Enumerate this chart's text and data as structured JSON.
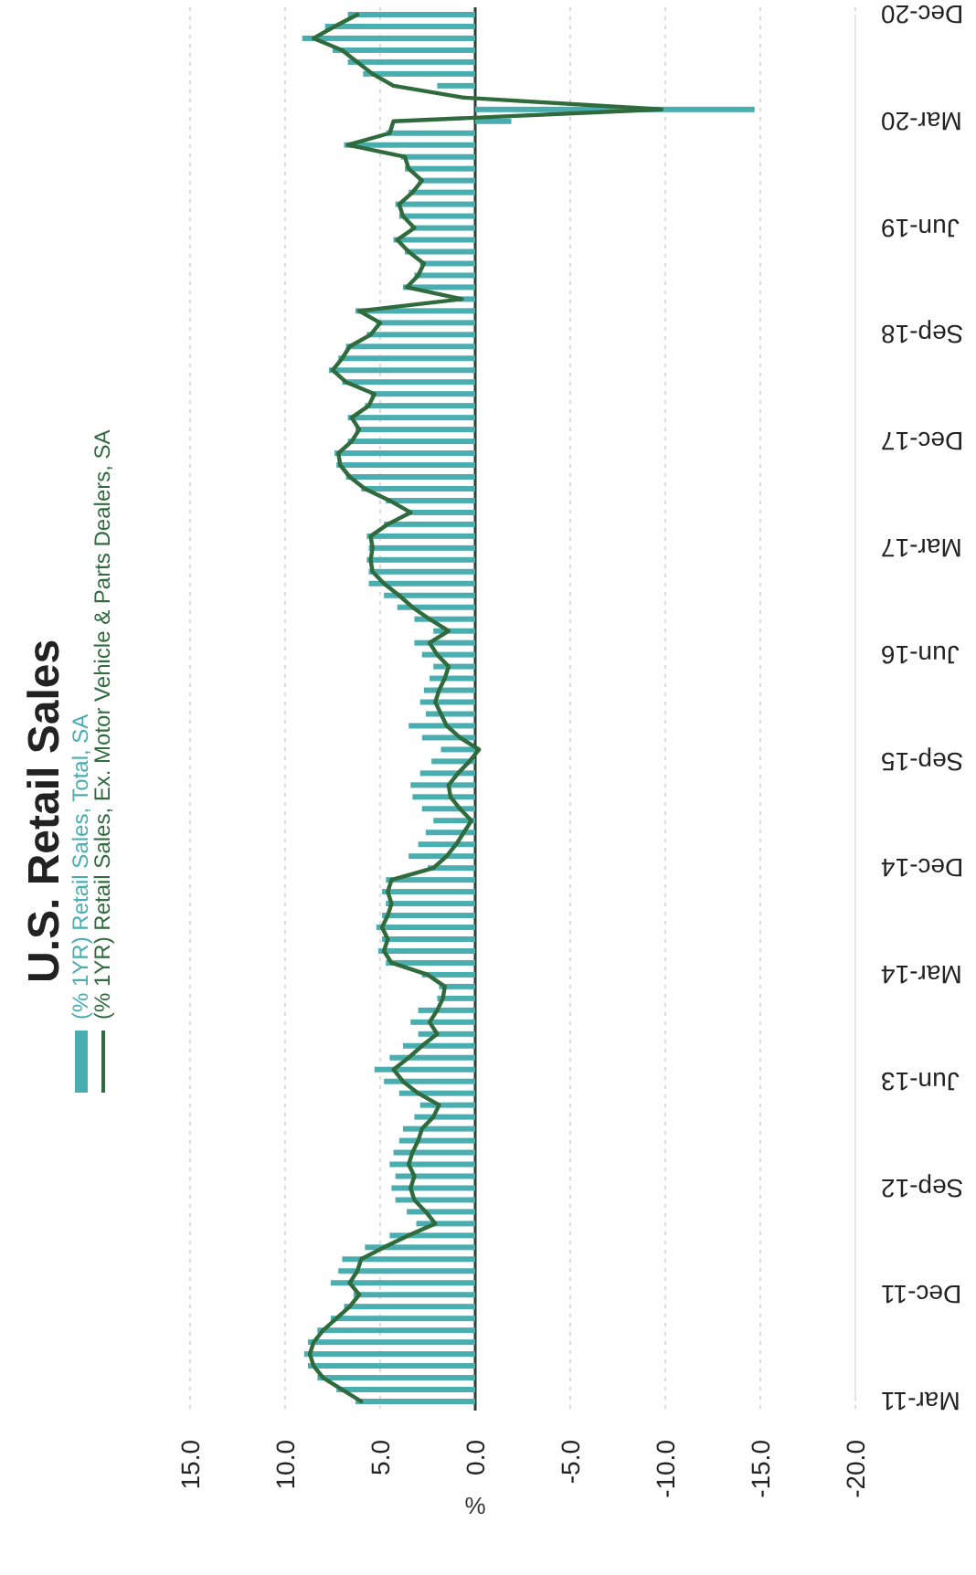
{
  "chart_data": {
    "type": "bar",
    "orientation": "horizontal",
    "title": "U.S. Retail Sales",
    "xlabel": "%",
    "categories": [
      "Dec-20",
      null,
      null,
      null,
      null,
      null,
      null,
      null,
      null,
      "Mar-20",
      null,
      null,
      null,
      null,
      null,
      null,
      null,
      null,
      "Jun-19",
      null,
      null,
      null,
      null,
      null,
      null,
      null,
      null,
      "Sep-18",
      null,
      null,
      null,
      null,
      null,
      null,
      null,
      null,
      "Dec-17",
      null,
      null,
      null,
      null,
      null,
      null,
      null,
      null,
      "Mar-17",
      null,
      null,
      null,
      null,
      null,
      null,
      null,
      null,
      "Jun-16",
      null,
      null,
      null,
      null,
      null,
      null,
      null,
      null,
      "Sep-15",
      null,
      null,
      null,
      null,
      null,
      null,
      null,
      null,
      "Dec-14",
      null,
      null,
      null,
      null,
      null,
      null,
      null,
      null,
      "Mar-14",
      null,
      null,
      null,
      null,
      null,
      null,
      null,
      null,
      "Jun-13",
      null,
      null,
      null,
      null,
      null,
      null,
      null,
      null,
      "Sep-12",
      null,
      null,
      null,
      null,
      null,
      null,
      null,
      null,
      "Dec-11",
      null,
      null,
      null,
      null,
      null,
      null,
      null,
      null,
      "Mar-11"
    ],
    "series": [
      {
        "name": "(% 1YR) Retail Sales, Total, SA",
        "type": "bar",
        "color": "#4aaeb0",
        "values": [
          6.7,
          7.9,
          9.1,
          7.5,
          6.7,
          5.9,
          2.0,
          null,
          -14.7,
          -1.9,
          4.7,
          6.9,
          3.9,
          3.7,
          3.0,
          3.5,
          4.2,
          4.0,
          3.4,
          4.3,
          3.7,
          2.9,
          3.2,
          3.8,
          0.9,
          6.3,
          5.2,
          5.7,
          6.8,
          7.2,
          7.7,
          7.0,
          5.5,
          5.8,
          6.7,
          6.3,
          6.7,
          7.4,
          7.3,
          6.8,
          6.0,
          4.7,
          3.6,
          4.8,
          5.7,
          5.6,
          5.7,
          5.6,
          5.6,
          4.8,
          4.1,
          3.2,
          2.2,
          3.2,
          2.8,
          2.2,
          2.4,
          2.7,
          2.9,
          2.6,
          3.5,
          2.8,
          1.8,
          2.3,
          2.9,
          3.4,
          3.3,
          2.8,
          2.2,
          2.6,
          3.0,
          3.5,
          2.5,
          4.7,
          4.9,
          4.7,
          4.9,
          5.2,
          4.9,
          5.1,
          4.7,
          2.8,
          1.9,
          2.0,
          3.0,
          3.4,
          3.0,
          3.8,
          4.5,
          5.3,
          4.8,
          4.0,
          2.9,
          3.2,
          3.8,
          4.0,
          4.3,
          4.5,
          4.2,
          4.4,
          4.2,
          3.6,
          3.1,
          4.5,
          5.8,
          7.0,
          7.2,
          7.6,
          6.4,
          6.9,
          7.6,
          8.3,
          8.8,
          9.0,
          8.8,
          8.3,
          7.3,
          6.3
        ]
      },
      {
        "name": "(% 1YR) Retail Sales, Ex. Motor Vehicle & Parts Dealers, SA",
        "type": "line",
        "color": "#2f6b3c",
        "values": [
          6.2,
          7.4,
          8.5,
          7.0,
          6.2,
          5.4,
          4.3,
          0.6,
          -9.8,
          4.3,
          4.5,
          6.7,
          3.7,
          3.5,
          2.8,
          3.3,
          4.0,
          3.8,
          3.2,
          4.1,
          3.5,
          2.7,
          3.0,
          3.6,
          0.7,
          6.1,
          5.0,
          5.5,
          6.6,
          7.0,
          7.5,
          6.8,
          5.3,
          5.6,
          6.5,
          6.1,
          6.5,
          7.2,
          7.1,
          6.6,
          5.8,
          4.5,
          3.4,
          4.6,
          5.5,
          5.4,
          5.5,
          5.4,
          4.8,
          4.0,
          3.3,
          2.4,
          1.4,
          2.4,
          2.0,
          1.4,
          1.6,
          1.9,
          2.1,
          1.8,
          1.5,
          0.8,
          -0.2,
          0.3,
          0.9,
          1.4,
          1.3,
          0.8,
          0.2,
          0.6,
          1.0,
          1.5,
          2.2,
          4.4,
          4.6,
          4.4,
          4.6,
          4.9,
          4.6,
          4.8,
          4.4,
          2.5,
          1.6,
          1.7,
          2.0,
          2.4,
          2.0,
          2.8,
          3.5,
          4.3,
          3.8,
          3.0,
          1.9,
          2.2,
          2.8,
          3.0,
          3.3,
          3.5,
          3.2,
          3.4,
          3.2,
          2.6,
          2.1,
          3.5,
          4.8,
          6.0,
          6.2,
          6.6,
          6.1,
          6.6,
          7.3,
          8.0,
          8.5,
          8.7,
          8.5,
          8.0,
          7.0,
          6.0
        ]
      }
    ],
    "xlim": [
      15,
      -20
    ],
    "xticks": [
      {
        "value": 15,
        "label": "15.0"
      },
      {
        "value": 10,
        "label": "10.0"
      },
      {
        "value": 5,
        "label": "5.0"
      },
      {
        "value": 0,
        "label": "0.0"
      },
      {
        "value": -5,
        "label": "-5.0"
      },
      {
        "value": -10,
        "label": "-10.0"
      },
      {
        "value": -15,
        "label": "-15.0"
      },
      {
        "value": -20,
        "label": "-20.0"
      }
    ],
    "ref_lines": [
      {
        "axis": "x",
        "value": 0,
        "color": "#2b3f33"
      }
    ],
    "grid": "x",
    "legend": "left"
  }
}
